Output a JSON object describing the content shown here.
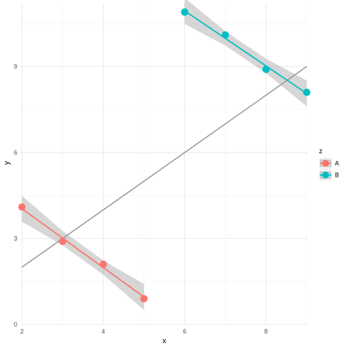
{
  "chart_data": {
    "type": "scatter",
    "xlabel": "x",
    "ylabel": "y",
    "xlim": [
      1.97,
      9.03
    ],
    "ylim": [
      0,
      11.2
    ],
    "x_ticks": [
      2,
      4,
      6,
      8
    ],
    "y_ticks": [
      0,
      3,
      6,
      9
    ],
    "x_tick_labels": [
      "2",
      "4",
      "6",
      "8"
    ],
    "y_tick_labels": [
      "0",
      "3",
      "6",
      "9"
    ],
    "grid": true,
    "legend": {
      "title": "z",
      "position": "right"
    },
    "series": [
      {
        "name": "A",
        "color": "#F8766D",
        "x": [
          2,
          3,
          4,
          5
        ],
        "y": [
          4.1,
          2.9,
          2.1,
          0.9
        ],
        "fit": {
          "x": [
            2,
            5
          ],
          "y": [
            4.04,
            0.96
          ],
          "ci_halfwidth": [
            0.45,
            0.25,
            0.25,
            0.45
          ]
        }
      },
      {
        "name": "B",
        "color": "#00BFC4",
        "x": [
          6,
          7,
          8,
          9
        ],
        "y": [
          10.9,
          10.1,
          8.9,
          8.1
        ],
        "fit": {
          "x": [
            6,
            9
          ],
          "y": [
            10.94,
            8.06
          ],
          "ci_halfwidth": [
            0.45,
            0.25,
            0.25,
            0.45
          ]
        }
      }
    ],
    "overall_fit": {
      "color": "#999999",
      "x": [
        2,
        9
      ],
      "y": [
        2.0,
        9.0
      ]
    }
  }
}
